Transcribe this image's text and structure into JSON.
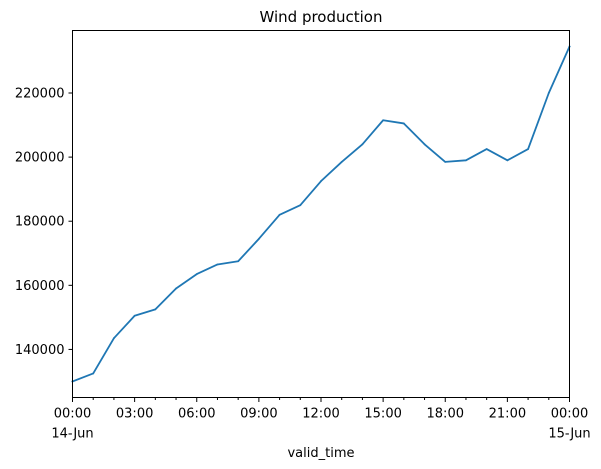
{
  "chart_data": {
    "type": "line",
    "title": "Wind production",
    "xlabel": "valid_time",
    "ylabel": "",
    "grid": false,
    "legend": "none",
    "x": [
      "2024-06-14 00:00",
      "2024-06-14 01:00",
      "2024-06-14 02:00",
      "2024-06-14 03:00",
      "2024-06-14 04:00",
      "2024-06-14 05:00",
      "2024-06-14 06:00",
      "2024-06-14 07:00",
      "2024-06-14 08:00",
      "2024-06-14 09:00",
      "2024-06-14 10:00",
      "2024-06-14 11:00",
      "2024-06-14 12:00",
      "2024-06-14 13:00",
      "2024-06-14 14:00",
      "2024-06-14 15:00",
      "2024-06-14 16:00",
      "2024-06-14 17:00",
      "2024-06-14 18:00",
      "2024-06-14 19:00",
      "2024-06-14 20:00",
      "2024-06-14 21:00",
      "2024-06-14 22:00",
      "2024-06-14 23:00",
      "2024-06-15 00:00"
    ],
    "series": [
      {
        "values": [
          130000,
          132500,
          143500,
          150500,
          152500,
          159000,
          163500,
          166500,
          167500,
          174500,
          182000,
          185000,
          192500,
          198500,
          204000,
          211500,
          210500,
          204000,
          198500,
          199000,
          202500,
          199000,
          202500,
          220000,
          234500
        ],
        "color": "#1f77b4"
      }
    ],
    "ylim": [
      125000,
      239500
    ],
    "yticks": [
      140000,
      160000,
      180000,
      200000,
      220000
    ],
    "ytick_labels": [
      "140000",
      "160000",
      "180000",
      "200000",
      "220000"
    ],
    "xticks": [
      {
        "hour": 0,
        "label": "00:00",
        "sublabel": "14-Jun"
      },
      {
        "hour": 3,
        "label": "03:00",
        "sublabel": ""
      },
      {
        "hour": 6,
        "label": "06:00",
        "sublabel": ""
      },
      {
        "hour": 9,
        "label": "09:00",
        "sublabel": ""
      },
      {
        "hour": 12,
        "label": "12:00",
        "sublabel": ""
      },
      {
        "hour": 15,
        "label": "15:00",
        "sublabel": ""
      },
      {
        "hour": 18,
        "label": "18:00",
        "sublabel": ""
      },
      {
        "hour": 21,
        "label": "21:00",
        "sublabel": ""
      },
      {
        "hour": 24,
        "label": "00:00",
        "sublabel": "15-Jun"
      }
    ],
    "xminor_step_hours": 1
  }
}
